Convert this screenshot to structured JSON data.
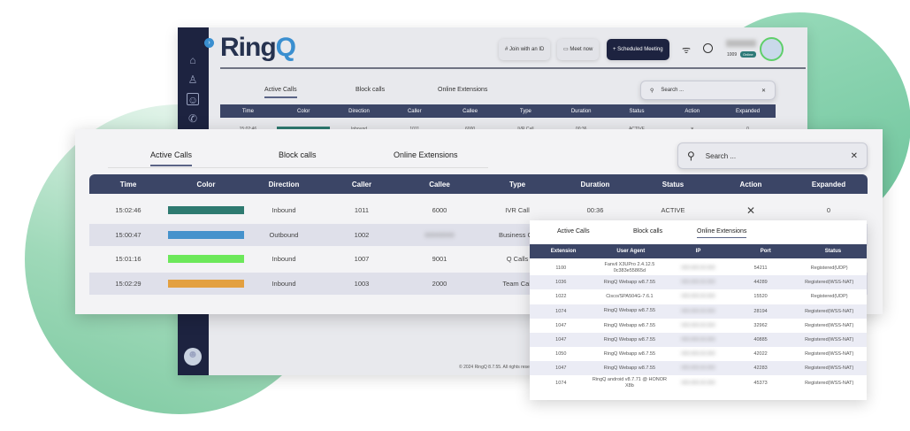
{
  "brand": {
    "logo": "RingQ",
    "accent": "#3a8fd0",
    "sidebar": "#1d2340",
    "header_bg": "#3b4566"
  },
  "back_window": {
    "buttons": {
      "join": "Join with an ID",
      "meet": "Meet now",
      "schedule": "Scheduled Meeting"
    },
    "user": {
      "extension": "1009",
      "status": "Online"
    },
    "tabs": [
      "Active Calls",
      "Block calls",
      "Online Extensions"
    ],
    "search_placeholder": "Search ...",
    "columns": [
      "Time",
      "Color",
      "Direction",
      "Caller",
      "Callee",
      "Type",
      "Duration",
      "Status",
      "Action",
      "Expanded"
    ],
    "row": {
      "time": "15:02:46",
      "color": "#2e7a70",
      "direction": "Inbound",
      "caller": "1011",
      "callee": "6000",
      "type": "IVR Call",
      "duration": "00:36",
      "status": "ACTIVE",
      "action": "✕",
      "expanded": "0"
    },
    "footer": "© 2024 RingQ 8.7.55. All rights reserved"
  },
  "active_calls": {
    "tabs": [
      "Active Calls",
      "Block calls",
      "Online Extensions"
    ],
    "search_placeholder": "Search ...",
    "columns": [
      "Time",
      "Color",
      "Direction",
      "Caller",
      "Callee",
      "Type",
      "Duration",
      "Status",
      "Action",
      "Expanded"
    ],
    "rows": [
      {
        "time": "15:02:46",
        "color": "#2e7a70",
        "direction": "Inbound",
        "caller": "1011",
        "callee": "6000",
        "type": "IVR Call",
        "duration": "00:36",
        "status": "ACTIVE",
        "action": "✕",
        "expanded": "0"
      },
      {
        "time": "15:00:47",
        "color": "#4592cc",
        "direction": "Outbound",
        "caller": "1002",
        "callee": "",
        "type": "Business Ca"
      },
      {
        "time": "15:01:16",
        "color": "#6ce85a",
        "direction": "Inbound",
        "caller": "1007",
        "callee": "9001",
        "type": "Q Calls"
      },
      {
        "time": "15:02:29",
        "color": "#e3a040",
        "direction": "Inbound",
        "caller": "1003",
        "callee": "2000",
        "type": "Team Call"
      }
    ]
  },
  "online_extensions": {
    "tabs": [
      "Active Calls",
      "Block calls",
      "Online Extensions"
    ],
    "columns": [
      "Extension",
      "User Agent",
      "IP",
      "Port",
      "Status"
    ],
    "rows": [
      {
        "ext": "1100",
        "agent": "Fanvil X3UPro 2.4.12.5 0c383e55865d",
        "port": "54211",
        "status": "Registered(UDP)"
      },
      {
        "ext": "1036",
        "agent": "RingQ Webapp w8.7.55",
        "port": "44289",
        "status": "Registered(WSS-NAT)"
      },
      {
        "ext": "1022",
        "agent": "Cisco/SPA504G-7.6.1",
        "port": "15520",
        "status": "Registered(UDP)"
      },
      {
        "ext": "1074",
        "agent": "RingQ Webapp w8.7.55",
        "port": "28194",
        "status": "Registered(WSS-NAT)"
      },
      {
        "ext": "1047",
        "agent": "RingQ Webapp w8.7.55",
        "port": "32962",
        "status": "Registered(WSS-NAT)"
      },
      {
        "ext": "1047",
        "agent": "RingQ Webapp w8.7.55",
        "port": "40885",
        "status": "Registered(WSS-NAT)"
      },
      {
        "ext": "1050",
        "agent": "RingQ Webapp w8.7.55",
        "port": "42022",
        "status": "Registered(WSS-NAT)"
      },
      {
        "ext": "1047",
        "agent": "RingQ Webapp w8.7.55",
        "port": "42283",
        "status": "Registered(WSS-NAT)"
      },
      {
        "ext": "1074",
        "agent": "RingQ android v8.7.71 @ HONOR X8b",
        "port": "45373",
        "status": "Registered(WSS-NAT)"
      }
    ]
  }
}
